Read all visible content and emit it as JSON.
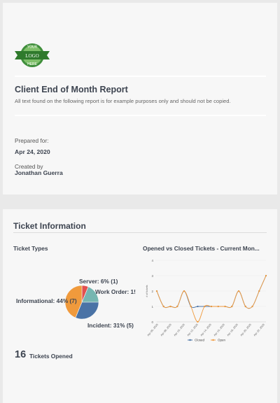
{
  "header": {
    "logo_text_top": "YOUR",
    "logo_text_mid": "LOGO",
    "logo_text_bottom": "HERE",
    "title": "Client End of Month Report",
    "description": "All text found on the following report is for example purposes only and should not be copied.",
    "prepared_for_label": "Prepared for:",
    "prepared_for_value": "Apr 24, 2020",
    "created_by_label": "Created by",
    "created_by_value": "Jonathan Guerra"
  },
  "ticket_section": {
    "title": "Ticket Information",
    "types_title": "Ticket Types",
    "line_title": "Opened vs Closed Tickets - Current Mon...",
    "opened_count": "16",
    "opened_label": "Tickets Opened"
  },
  "colors": {
    "server": "#e3504f",
    "work_order": "#76b6b1",
    "incident": "#4a73a6",
    "informational": "#f09a3c",
    "closed": "#4a73a6",
    "open": "#f09a3c"
  },
  "chart_data": [
    {
      "type": "pie",
      "title": "Ticket Types",
      "slices": [
        {
          "label": "Server: 6% (1)",
          "name": "Server",
          "value": 1
        },
        {
          "label": "Work Order: 1!",
          "name": "Work Order",
          "value": 3
        },
        {
          "label": "Incident: 31% (5)",
          "name": "Incident",
          "value": 5
        },
        {
          "label": "Informational: 44% (7)",
          "name": "Informational",
          "value": 7
        }
      ]
    },
    {
      "type": "line",
      "title": "Opened vs Closed Tickets - Current Mon...",
      "ylabel": "# of tickets",
      "ylim": [
        0,
        4
      ],
      "yticks": [
        "0",
        "1",
        "2",
        "3",
        "4"
      ],
      "xticks": [
        "Apr 06, 2020",
        "Apr 08, 2020",
        "Apr 10, 2020",
        "Apr 12, 2020",
        "Apr 14, 2020",
        "Apr 16, 2020",
        "Apr 18, 2020",
        "Apr 20, 2020",
        "Apr 22, 2020"
      ],
      "series": [
        {
          "name": "Closed",
          "x": [
            0,
            1,
            2,
            3,
            4,
            5,
            6,
            7,
            8,
            9,
            10,
            11,
            12,
            13,
            14,
            15,
            16
          ],
          "y": [
            2,
            1,
            1,
            1,
            2,
            1,
            1,
            1,
            1,
            1,
            1,
            1,
            2,
            1,
            1,
            2,
            3
          ]
        },
        {
          "name": "Open",
          "x": [
            0,
            1,
            2,
            3,
            4,
            5,
            6,
            7,
            8,
            9,
            10,
            11,
            12,
            13,
            14,
            15,
            16
          ],
          "y": [
            2,
            1,
            1,
            1,
            2,
            1,
            0,
            1,
            1,
            1,
            1,
            1,
            2,
            1,
            1,
            2,
            3
          ]
        }
      ]
    }
  ]
}
